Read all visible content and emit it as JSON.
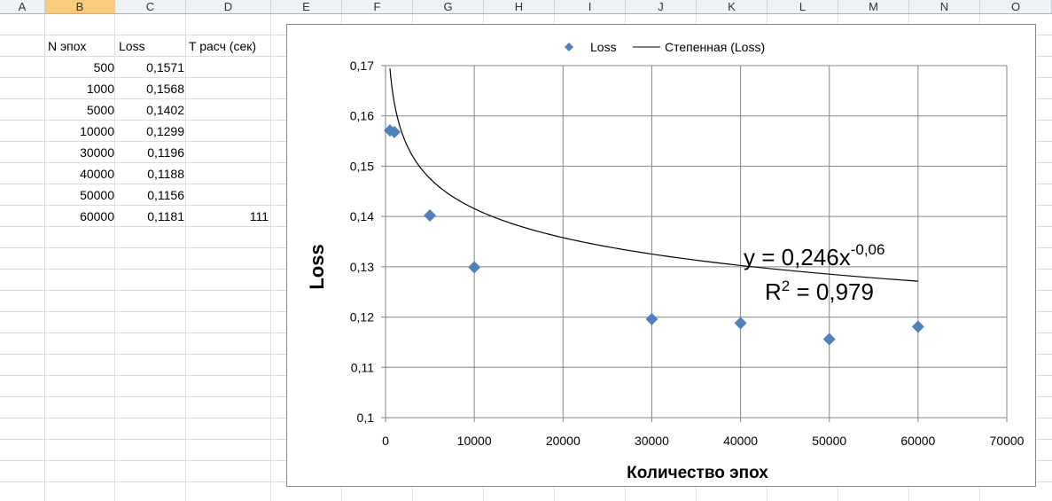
{
  "columns": [
    "A",
    "B",
    "C",
    "D",
    "E",
    "F",
    "G",
    "H",
    "I",
    "J",
    "K",
    "L",
    "M",
    "N",
    "O"
  ],
  "selected_column": "B",
  "table": {
    "headers": [
      "N  эпох",
      "Loss",
      "T расч (сек)"
    ],
    "rows": [
      {
        "n": "500",
        "loss": "0,1571",
        "t": ""
      },
      {
        "n": "1000",
        "loss": "0,1568",
        "t": ""
      },
      {
        "n": "5000",
        "loss": "0,1402",
        "t": ""
      },
      {
        "n": "10000",
        "loss": "0,1299",
        "t": ""
      },
      {
        "n": "30000",
        "loss": "0,1196",
        "t": ""
      },
      {
        "n": "40000",
        "loss": "0,1188",
        "t": ""
      },
      {
        "n": "50000",
        "loss": "0,1156",
        "t": ""
      },
      {
        "n": "60000",
        "loss": "0,1181",
        "t": "111"
      }
    ]
  },
  "chart_data": {
    "type": "scatter",
    "title": "",
    "xlabel": "Количество эпох",
    "ylabel": "Loss",
    "xlim": [
      0,
      70000
    ],
    "ylim": [
      0.1,
      0.17
    ],
    "x_ticks": [
      "0",
      "10000",
      "20000",
      "30000",
      "40000",
      "50000",
      "60000",
      "70000"
    ],
    "y_ticks": [
      "0,1",
      "0,11",
      "0,12",
      "0,13",
      "0,14",
      "0,15",
      "0,16",
      "0,17"
    ],
    "grid": true,
    "legend_position": "top",
    "series": [
      {
        "name": "Loss",
        "marker": "diamond",
        "color": "#4f81bd",
        "x": [
          500,
          1000,
          5000,
          10000,
          30000,
          40000,
          50000,
          60000
        ],
        "y": [
          0.1571,
          0.1568,
          0.1402,
          0.1299,
          0.1196,
          0.1188,
          0.1156,
          0.1181
        ]
      },
      {
        "name": "Степенная (Loss)",
        "type": "trendline-power",
        "color": "#000000",
        "coef": 0.246,
        "exp": -0.06,
        "x_range": [
          500,
          60000
        ]
      }
    ],
    "annotation": {
      "equation_base": "y = 0,246x",
      "equation_exp": "-0,06",
      "r2_prefix": "R",
      "r2_sup": "2",
      "r2_value": " = 0,979"
    }
  }
}
